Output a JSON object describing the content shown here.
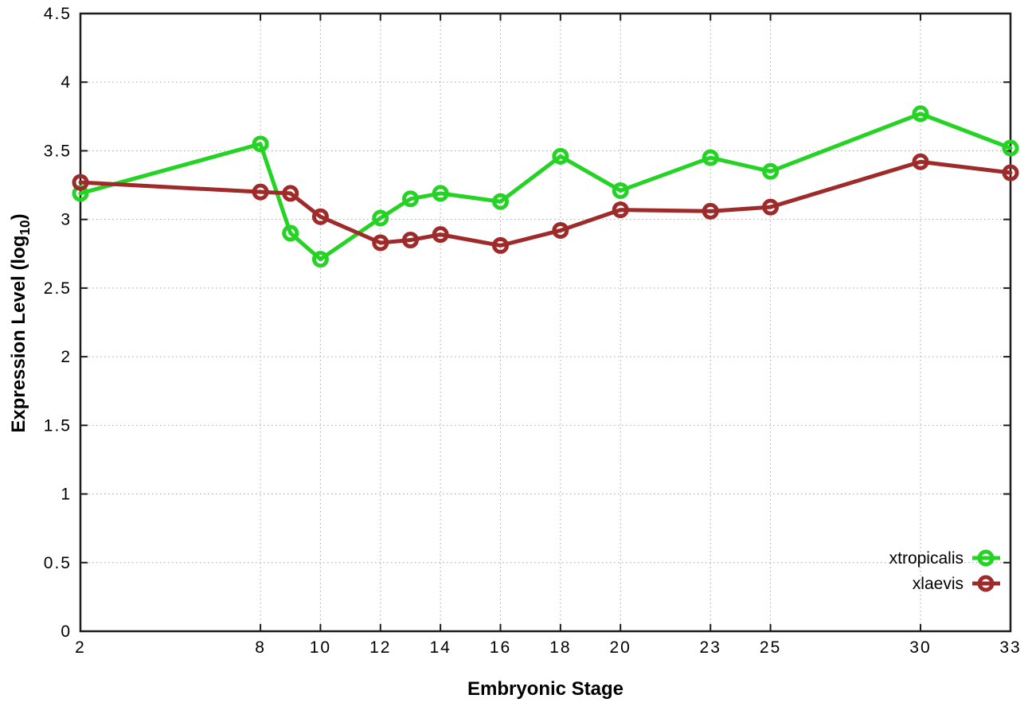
{
  "page": {
    "background": "#ffffff"
  },
  "chart_data": {
    "type": "line",
    "title": "",
    "xlabel": "Embryonic Stage",
    "ylabel": "Expression Level (log10)",
    "ylabel_parts": {
      "base": "Expression Level (log",
      "sub": "10",
      "close": ")"
    },
    "xlim": [
      2,
      33
    ],
    "ylim": [
      0,
      4.5
    ],
    "x_ticks": [
      2,
      8,
      10,
      12,
      14,
      16,
      18,
      20,
      23,
      25,
      30,
      33
    ],
    "y_ticks": [
      0,
      0.5,
      1,
      1.5,
      2,
      2.5,
      3,
      3.5,
      4,
      4.5
    ],
    "y_tick_labels": [
      "0",
      "0.5",
      "1",
      "1.5",
      "2",
      "2.5",
      "3",
      "3.5",
      "4",
      "4.5"
    ],
    "grid": true,
    "legend": {
      "position": "inside-bottom-right",
      "entries": [
        "xtropicalis",
        "xlaevis"
      ]
    },
    "x": [
      2,
      8,
      9,
      10,
      12,
      13,
      14,
      16,
      18,
      20,
      23,
      25,
      30,
      33
    ],
    "series": [
      {
        "name": "xtropicalis",
        "color": "#24d324",
        "marker": "open-circle",
        "values": [
          3.19,
          3.55,
          2.9,
          2.71,
          3.01,
          3.15,
          3.19,
          3.13,
          3.46,
          3.21,
          3.45,
          3.35,
          3.77,
          3.52
        ]
      },
      {
        "name": "xlaevis",
        "color": "#9e2a2a",
        "marker": "open-circle",
        "values": [
          3.27,
          3.2,
          3.19,
          3.02,
          2.83,
          2.85,
          2.89,
          2.81,
          2.92,
          3.07,
          3.06,
          3.09,
          3.42,
          3.34
        ]
      }
    ],
    "colors": {
      "axis": "#1c1c1c",
      "grid": "#a6a6a6",
      "text": "#000000"
    }
  }
}
